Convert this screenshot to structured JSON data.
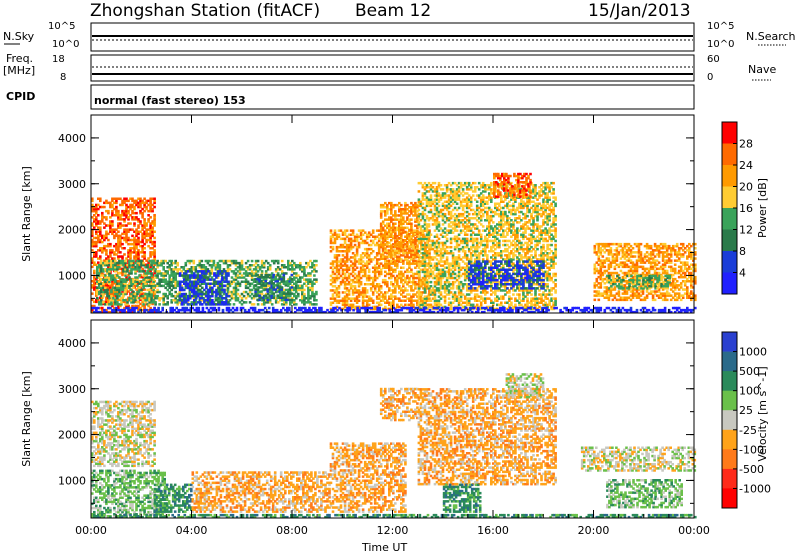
{
  "header": {
    "station": "Zhongshan Station (fitACF)",
    "beam": "Beam 12",
    "date": "15/Jan/2013"
  },
  "status_panel": {
    "nsky_label": "N.Sky",
    "nsearch_label": "N.Search",
    "nsky_ticks": [
      "10^5",
      "10^0"
    ],
    "nsearch_ticks": [
      "10^5",
      "10^0"
    ],
    "freq_label_1": "Freq.",
    "freq_label_2": "[MHz]",
    "freq_ticks": [
      "18",
      "8"
    ],
    "nave_label": "Nave",
    "nave_ticks": [
      "60",
      "0"
    ],
    "cpid_label": "CPID",
    "cpid_text": "normal (fast stereo) 153"
  },
  "chart_data": [
    {
      "type": "heatmap",
      "name": "Power",
      "ylabel": "Slant Range [km]",
      "xlabel": "Time UT",
      "xlim_hours": [
        0,
        24
      ],
      "ylim": [
        180,
        4500
      ],
      "y_ticks": [
        1000,
        2000,
        3000,
        4000
      ],
      "x_ticks": [
        "00:00",
        "04:00",
        "08:00",
        "12:00",
        "16:00",
        "20:00",
        "00:00"
      ],
      "colorbar": {
        "label": "Power [dB]",
        "ticks": [
          "28",
          "24",
          "20",
          "16",
          "12",
          "8",
          "4"
        ],
        "colors": [
          "#ff0000",
          "#ff6a00",
          "#ff9a00",
          "#ffcc33",
          "#3aa35a",
          "#2a7a4a",
          "#1a3dd8",
          "#2020ff"
        ]
      },
      "regions": [
        {
          "t0": 0.0,
          "t1": 2.5,
          "r0": 180,
          "r1": 2700,
          "level": 1
        },
        {
          "t0": 0.2,
          "t1": 9.0,
          "r0": 350,
          "r1": 1300,
          "level": 4
        },
        {
          "t0": 3.5,
          "t1": 5.5,
          "r0": 350,
          "r1": 1100,
          "level": 6
        },
        {
          "t0": 6.5,
          "t1": 8.0,
          "r0": 450,
          "r1": 1000,
          "level": 5
        },
        {
          "t0": 9.5,
          "t1": 13.5,
          "r0": 250,
          "r1": 2000,
          "level": 2
        },
        {
          "t0": 11.5,
          "t1": 13.0,
          "r0": 1300,
          "r1": 2600,
          "level": 2
        },
        {
          "t0": 13.0,
          "t1": 18.5,
          "r0": 250,
          "r1": 3000,
          "level": 3
        },
        {
          "t0": 15.0,
          "t1": 18.0,
          "r0": 700,
          "r1": 1300,
          "level": 6
        },
        {
          "t0": 16.0,
          "t1": 17.5,
          "r0": 2700,
          "r1": 3200,
          "level": 1
        },
        {
          "t0": 20.0,
          "t1": 24.0,
          "r0": 450,
          "r1": 1700,
          "level": 2
        },
        {
          "t0": 20.5,
          "t1": 23.0,
          "r0": 700,
          "r1": 1000,
          "level": 4
        },
        {
          "t0": 0.0,
          "t1": 24.0,
          "r0": 180,
          "r1": 300,
          "level": 7
        }
      ]
    },
    {
      "type": "heatmap",
      "name": "Velocity",
      "ylabel": "Slant Range [km]",
      "xlabel": "Time UT",
      "xlim_hours": [
        0,
        24
      ],
      "ylim": [
        180,
        4500
      ],
      "y_ticks": [
        1000,
        2000,
        3000,
        4000
      ],
      "x_ticks": [
        "00:00",
        "04:00",
        "08:00",
        "12:00",
        "16:00",
        "20:00",
        "00:00"
      ],
      "colorbar": {
        "label": "Velocity [m s^-1]",
        "ticks": [
          "1000",
          "500",
          "100",
          "25",
          "-25",
          "-100",
          "-500",
          "-1000"
        ],
        "colors": [
          "#2a40d0",
          "#2a6a8a",
          "#2a8a5a",
          "#6ac04a",
          "#c8c8c0",
          "#ffa31a",
          "#ff7a1a",
          "#ff2a1a",
          "#ff0000"
        ]
      },
      "regions": [
        {
          "t0": 0.0,
          "t1": 2.5,
          "r0": 1300,
          "r1": 2700,
          "level": 4
        },
        {
          "t0": 0.0,
          "t1": 3.0,
          "r0": 200,
          "r1": 1200,
          "level": 3
        },
        {
          "t0": 2.5,
          "t1": 4.0,
          "r0": 300,
          "r1": 900,
          "level": 2
        },
        {
          "t0": 4.0,
          "t1": 9.5,
          "r0": 300,
          "r1": 1200,
          "level": 5
        },
        {
          "t0": 9.5,
          "t1": 12.5,
          "r0": 300,
          "r1": 1800,
          "level": 5
        },
        {
          "t0": 11.5,
          "t1": 13.0,
          "r0": 2300,
          "r1": 3000,
          "level": 5
        },
        {
          "t0": 13.0,
          "t1": 18.5,
          "r0": 900,
          "r1": 3000,
          "level": 5
        },
        {
          "t0": 14.0,
          "t1": 15.5,
          "r0": 300,
          "r1": 900,
          "level": 2
        },
        {
          "t0": 16.5,
          "t1": 18.0,
          "r0": 2800,
          "r1": 3300,
          "level": 4
        },
        {
          "t0": 19.5,
          "t1": 24.0,
          "r0": 1200,
          "r1": 1700,
          "level": 4
        },
        {
          "t0": 20.5,
          "t1": 23.5,
          "r0": 400,
          "r1": 1000,
          "level": 3
        },
        {
          "t0": 0.0,
          "t1": 24.0,
          "r0": 180,
          "r1": 260,
          "level": 2
        }
      ]
    }
  ]
}
